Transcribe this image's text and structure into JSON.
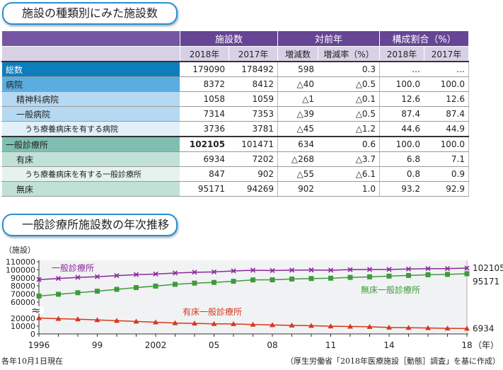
{
  "table_title": "施設の種類別にみた施設数",
  "chart_title": "一般診療所施設数の年次推移",
  "table": {
    "group_headers": [
      "施設数",
      "対前年",
      "構成割合（%）"
    ],
    "sub_headers": [
      "2018年",
      "2017年",
      "増減数",
      "増減率（%）",
      "2018年",
      "2017年"
    ],
    "rows": [
      {
        "label": "総数",
        "style": "l0",
        "values": [
          "179090",
          "178492",
          "598",
          "0.3",
          "…",
          "…"
        ]
      },
      {
        "label": "病院",
        "style": "l1",
        "values": [
          "8372",
          "8412",
          "△40",
          "△0.5",
          "100.0",
          "100.0"
        ]
      },
      {
        "label": "精神科病院",
        "style": "l2",
        "values": [
          "1058",
          "1059",
          "△1",
          "△0.1",
          "12.6",
          "12.6"
        ]
      },
      {
        "label": "一般病院",
        "style": "l2",
        "values": [
          "7314",
          "7353",
          "△39",
          "△0.5",
          "87.4",
          "87.4"
        ]
      },
      {
        "label": "うち療養病床を有する病院",
        "style": "l3",
        "values": [
          "3736",
          "3781",
          "△45",
          "△1.2",
          "44.6",
          "44.9"
        ]
      },
      {
        "label": "一般診療所",
        "style": "g0",
        "values": [
          "102105",
          "101471",
          "634",
          "0.6",
          "100.0",
          "100.0"
        ]
      },
      {
        "label": "有床",
        "style": "g1",
        "values": [
          "6934",
          "7202",
          "△268",
          "△3.7",
          "6.8",
          "7.1"
        ]
      },
      {
        "label": "うち療養病床を有する一般診療所",
        "style": "g2",
        "values": [
          "847",
          "902",
          "△55",
          "△6.1",
          "0.8",
          "0.9"
        ]
      },
      {
        "label": "無床",
        "style": "g1",
        "values": [
          "95171",
          "94269",
          "902",
          "1.0",
          "93.2",
          "92.9"
        ]
      }
    ]
  },
  "chart_data": {
    "type": "line",
    "ylabel": "（施設）",
    "xunit": "（年）",
    "x": [
      1996,
      1997,
      1998,
      1999,
      2000,
      2001,
      2002,
      2003,
      2004,
      2005,
      2006,
      2007,
      2008,
      2009,
      2010,
      2011,
      2012,
      2013,
      2014,
      2015,
      2016,
      2017,
      2018
    ],
    "xticks": [
      {
        "v": 1996,
        "l": "1996"
      },
      {
        "v": 1999,
        "l": "99"
      },
      {
        "v": 2002,
        "l": "2002"
      },
      {
        "v": 2005,
        "l": "05"
      },
      {
        "v": 2008,
        "l": "08"
      },
      {
        "v": 2011,
        "l": "11"
      },
      {
        "v": 2014,
        "l": "14"
      },
      {
        "v": 2018,
        "l": "18"
      }
    ],
    "yticks": [
      "0",
      "10000",
      "20000",
      "60000",
      "70000",
      "80000",
      "90000",
      "100000",
      "110000"
    ],
    "y_axis_break": [
      20000,
      60000
    ],
    "series": [
      {
        "name": "一般診療所",
        "color": "#8a2a9a",
        "marker": "x",
        "end_label": "102105",
        "values": [
          87900,
          89300,
          90600,
          91500,
          92800,
          94000,
          94800,
          96000,
          97000,
          97400,
          98600,
          99500,
          99100,
          99600,
          99800,
          99500,
          100200,
          100500,
          100500,
          101000,
          101500,
          101500,
          102105
        ]
      },
      {
        "name": "無床一般診療所",
        "color": "#3f9a3a",
        "marker": "square",
        "end_label": "95171",
        "values": [
          67500,
          69700,
          71600,
          73500,
          75800,
          78000,
          79800,
          82000,
          83500,
          84400,
          85800,
          87500,
          87600,
          88600,
          89200,
          89600,
          90600,
          91300,
          92200,
          93000,
          93900,
          94300,
          95171
        ]
      },
      {
        "name": "有床一般診療所",
        "color": "#d6371f",
        "marker": "triangle",
        "end_label": "6934",
        "values": [
          20400,
          19600,
          19000,
          18000,
          17000,
          16000,
          15000,
          14000,
          13500,
          13000,
          12800,
          12000,
          11500,
          11000,
          10600,
          9900,
          9600,
          9200,
          8300,
          7960,
          7600,
          7202,
          6934
        ]
      }
    ]
  },
  "footnote_left": "各年10月1日現在",
  "footnote_right": "（厚生労働省「2018年医療施設［動態］調査」を基に作成）"
}
